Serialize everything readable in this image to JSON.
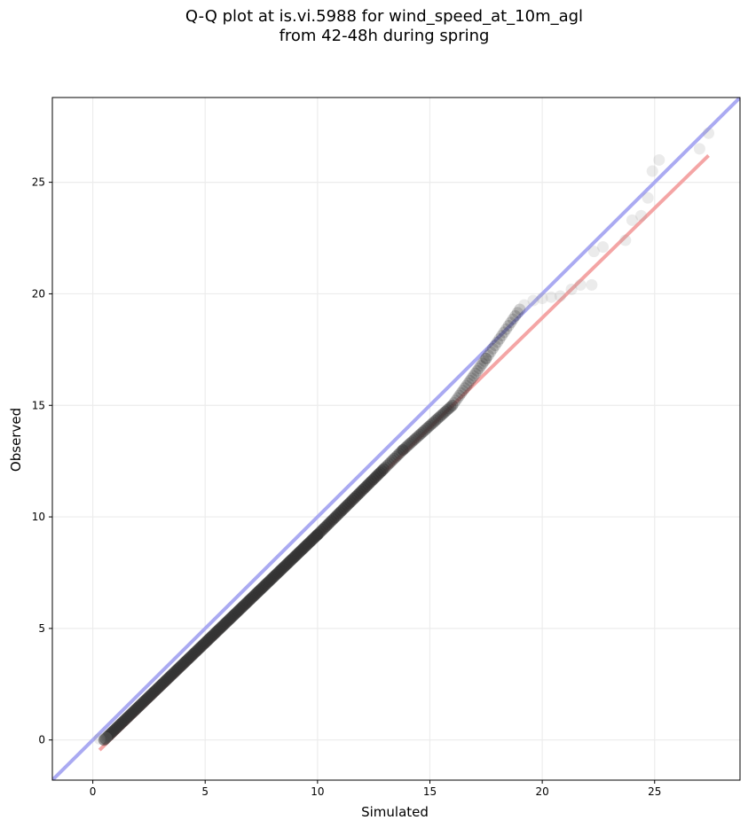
{
  "figure": {
    "title_line1": "Q-Q plot at is.vi.5988 for wind_speed_at_10m_agl",
    "title_line2": "from 42-48h during spring"
  },
  "chart_data": {
    "type": "scatter",
    "title": "Q-Q plot at is.vi.5988 for wind_speed_at_10m_agl\nfrom 42-48h during spring",
    "xlabel": "Simulated",
    "ylabel": "Observed",
    "xlim": [
      -1.8,
      28.8
    ],
    "ylim": [
      -1.8,
      28.8
    ],
    "xticks": [
      0,
      5,
      10,
      15,
      20,
      25
    ],
    "yticks": [
      0,
      5,
      10,
      15,
      20,
      25
    ],
    "grid": true,
    "colors": {
      "points": "#333333",
      "identity_line": "#aaaaf2",
      "fit_line": "#f4a5a5",
      "grid": "#ececec"
    },
    "reference_lines": [
      {
        "kind": "identity",
        "x": [
          -1.8,
          28.8
        ],
        "y": [
          -1.8,
          28.8
        ],
        "color": "#aaaaf2"
      },
      {
        "kind": "fit",
        "x": [
          0.3,
          27.4
        ],
        "y": [
          -0.45,
          26.2
        ],
        "color": "#f4a5a5"
      }
    ],
    "dense_segments": [
      {
        "x": [
          0.5,
          10.0
        ],
        "y": [
          0.0,
          9.2
        ],
        "n": 160
      },
      {
        "x": [
          10.0,
          13.8
        ],
        "y": [
          9.2,
          13.0
        ],
        "n": 50
      },
      {
        "x": [
          13.8,
          16.0
        ],
        "y": [
          13.0,
          15.0
        ],
        "n": 30
      },
      {
        "x": [
          16.0,
          17.5
        ],
        "y": [
          15.0,
          17.1
        ],
        "n": 20
      },
      {
        "x": [
          17.5,
          19.0
        ],
        "y": [
          17.1,
          19.3
        ],
        "n": 16
      }
    ],
    "points": [
      [
        0.3,
        0.05
      ],
      [
        0.6,
        0.1
      ],
      [
        19.2,
        19.5
      ],
      [
        19.6,
        19.7
      ],
      [
        20.0,
        19.8
      ],
      [
        20.4,
        19.85
      ],
      [
        20.8,
        19.9
      ],
      [
        21.3,
        20.2
      ],
      [
        21.7,
        20.4
      ],
      [
        22.2,
        20.4
      ],
      [
        22.3,
        21.9
      ],
      [
        22.7,
        22.1
      ],
      [
        23.7,
        22.4
      ],
      [
        24.0,
        23.3
      ],
      [
        24.4,
        23.5
      ],
      [
        24.7,
        24.3
      ],
      [
        24.9,
        25.5
      ],
      [
        25.2,
        26.0
      ],
      [
        27.0,
        26.5
      ],
      [
        27.4,
        27.2
      ]
    ]
  }
}
